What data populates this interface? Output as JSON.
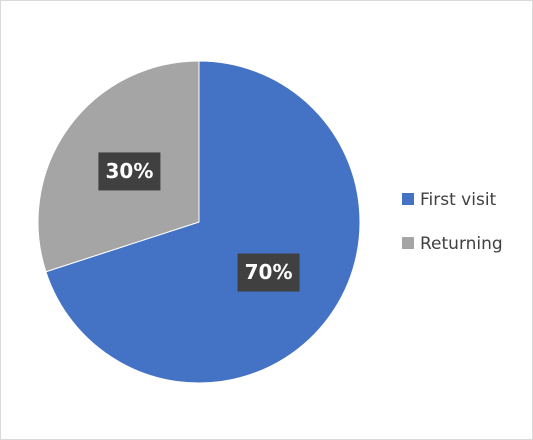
{
  "chart_data": {
    "type": "pie",
    "categories": [
      "First visit",
      "Returning"
    ],
    "values": [
      70,
      30
    ],
    "value_labels": [
      "70%",
      "30%"
    ],
    "colors": [
      "#4472c4",
      "#a5a5a5"
    ],
    "legend": "right"
  }
}
